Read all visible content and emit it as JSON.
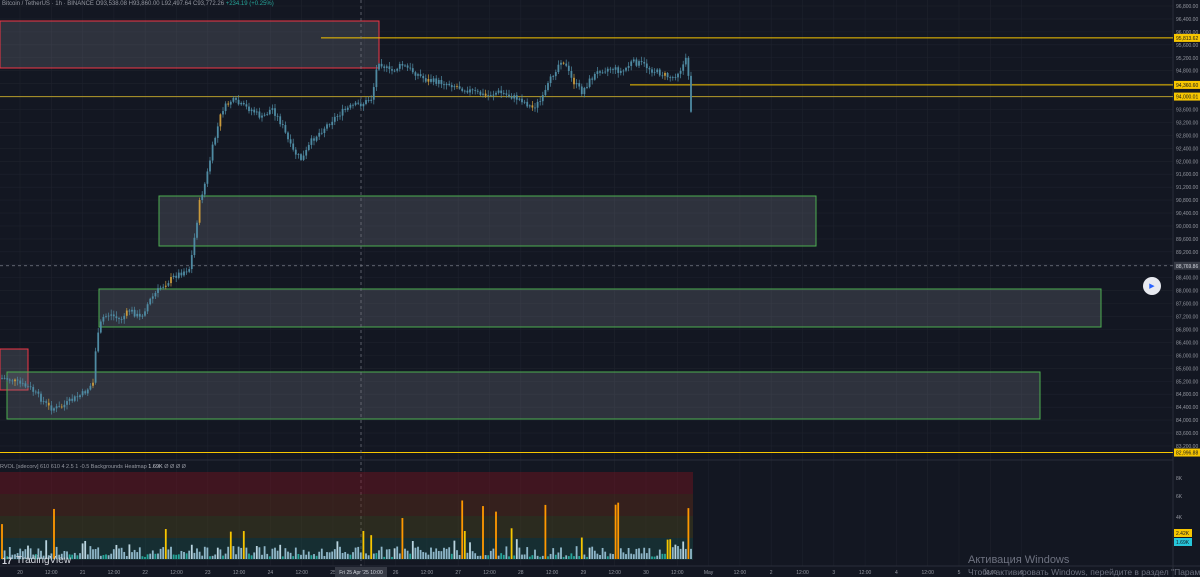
{
  "legend": {
    "symbol": "Bitcoin / TetherUS · 1h · BINANCE",
    "ohlc": "O93,538.08 H93,860.00 L92,497.64 C93,772.26",
    "change": "+234.19 (+0.25%)"
  },
  "volume_legend": {
    "title": "RVOL [sdecorv] 610 610 4 2.5 1 -0.5 Backgrounds Heatmap",
    "value": "1.69K",
    "extra": "Ø Ø Ø Ø"
  },
  "price_axis": {
    "ticks": [
      "96,800.00",
      "96,400.00",
      "96,000.00",
      "95,600.00",
      "95,200.00",
      "94,800.00",
      "94,400.00",
      "94,000.00",
      "93,600.00",
      "93,200.00",
      "92,800.00",
      "92,400.00",
      "92,000.00",
      "91,600.00",
      "91,200.00",
      "90,800.00",
      "90,400.00",
      "90,000.00",
      "89,600.00",
      "89,200.00",
      "88,800.00",
      "88,400.00",
      "88,000.00",
      "87,600.00",
      "87,200.00",
      "86,800.00",
      "86,400.00",
      "86,000.00",
      "85,600.00",
      "85,200.00",
      "84,800.00",
      "84,400.00",
      "84,000.00",
      "83,600.00",
      "83,200.00"
    ],
    "badges": [
      {
        "text": "95,813.62",
        "color": "#f7c600"
      },
      {
        "text": "94,360.60",
        "color": "#f7c600"
      },
      {
        "text": "94,000.01",
        "color": "#f7c600"
      },
      {
        "text": "88,769.86",
        "color": "#363a45"
      },
      {
        "text": "82,996.88",
        "color": "#f7c600"
      }
    ]
  },
  "volume_axis": {
    "ticks": [
      "8K",
      "6K",
      "4K"
    ],
    "badges": [
      {
        "text": "2.42K",
        "color": "#f7c600"
      },
      {
        "text": "1.69K",
        "color": "#26c6da"
      }
    ]
  },
  "time_axis": {
    "labels": [
      "20",
      "12:00",
      "21",
      "12:00",
      "22",
      "12:00",
      "23",
      "12:00",
      "24",
      "12:00",
      "25",
      "12:00",
      "26",
      "12:00",
      "27",
      "12:00",
      "28",
      "12:00",
      "29",
      "12:00",
      "30",
      "12:00",
      "May",
      "12:00",
      "2",
      "12:00",
      "3",
      "12:00",
      "4",
      "12:00",
      "5",
      "12:00",
      "6"
    ],
    "crosshair_label": "Fri 25 Apr '25   10:00"
  },
  "play_icon": "▶",
  "branding": {
    "mark": "17",
    "name": "TradingView"
  },
  "watermark": {
    "line1": "Активация Windows",
    "line2": "Чтобы активировать Windows, перейдите в раздел \"Параметры\"."
  },
  "colors": {
    "background": "#131722",
    "grid": "#1e222d",
    "candle": "#4f8ba3",
    "accent": "#f7c600",
    "zone_supply": "#f23645",
    "zone_demand": "#4caf50"
  }
}
